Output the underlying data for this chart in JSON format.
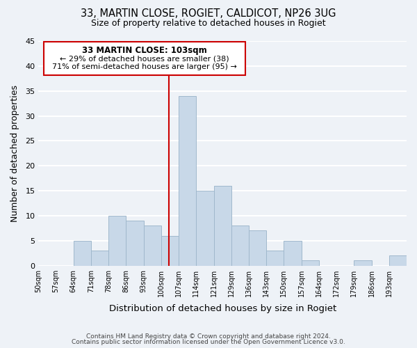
{
  "title1": "33, MARTIN CLOSE, ROGIET, CALDICOT, NP26 3UG",
  "title2": "Size of property relative to detached houses in Rogiet",
  "xlabel": "Distribution of detached houses by size in Rogiet",
  "ylabel": "Number of detached properties",
  "bin_labels": [
    "50sqm",
    "57sqm",
    "64sqm",
    "71sqm",
    "78sqm",
    "86sqm",
    "93sqm",
    "100sqm",
    "107sqm",
    "114sqm",
    "121sqm",
    "129sqm",
    "136sqm",
    "143sqm",
    "150sqm",
    "157sqm",
    "164sqm",
    "172sqm",
    "179sqm",
    "186sqm",
    "193sqm"
  ],
  "bar_values": [
    0,
    0,
    5,
    3,
    10,
    9,
    8,
    6,
    34,
    15,
    16,
    8,
    7,
    3,
    5,
    1,
    0,
    0,
    1,
    0,
    2
  ],
  "bar_color": "#c8d8e8",
  "bar_edge_color": "#a0b8cc",
  "vline_x_index": 7.857,
  "vline_color": "#cc0000",
  "annotation_title": "33 MARTIN CLOSE: 103sqm",
  "annotation_line1": "← 29% of detached houses are smaller (38)",
  "annotation_line2": "71% of semi-detached houses are larger (95) →",
  "annotation_box_edge": "#cc0000",
  "annotation_box_fill": "white",
  "ylim": [
    0,
    45
  ],
  "yticks": [
    0,
    5,
    10,
    15,
    20,
    25,
    30,
    35,
    40,
    45
  ],
  "footer1": "Contains HM Land Registry data © Crown copyright and database right 2024.",
  "footer2": "Contains public sector information licensed under the Open Government Licence v3.0.",
  "bg_color": "#eef2f7",
  "grid_color": "white"
}
